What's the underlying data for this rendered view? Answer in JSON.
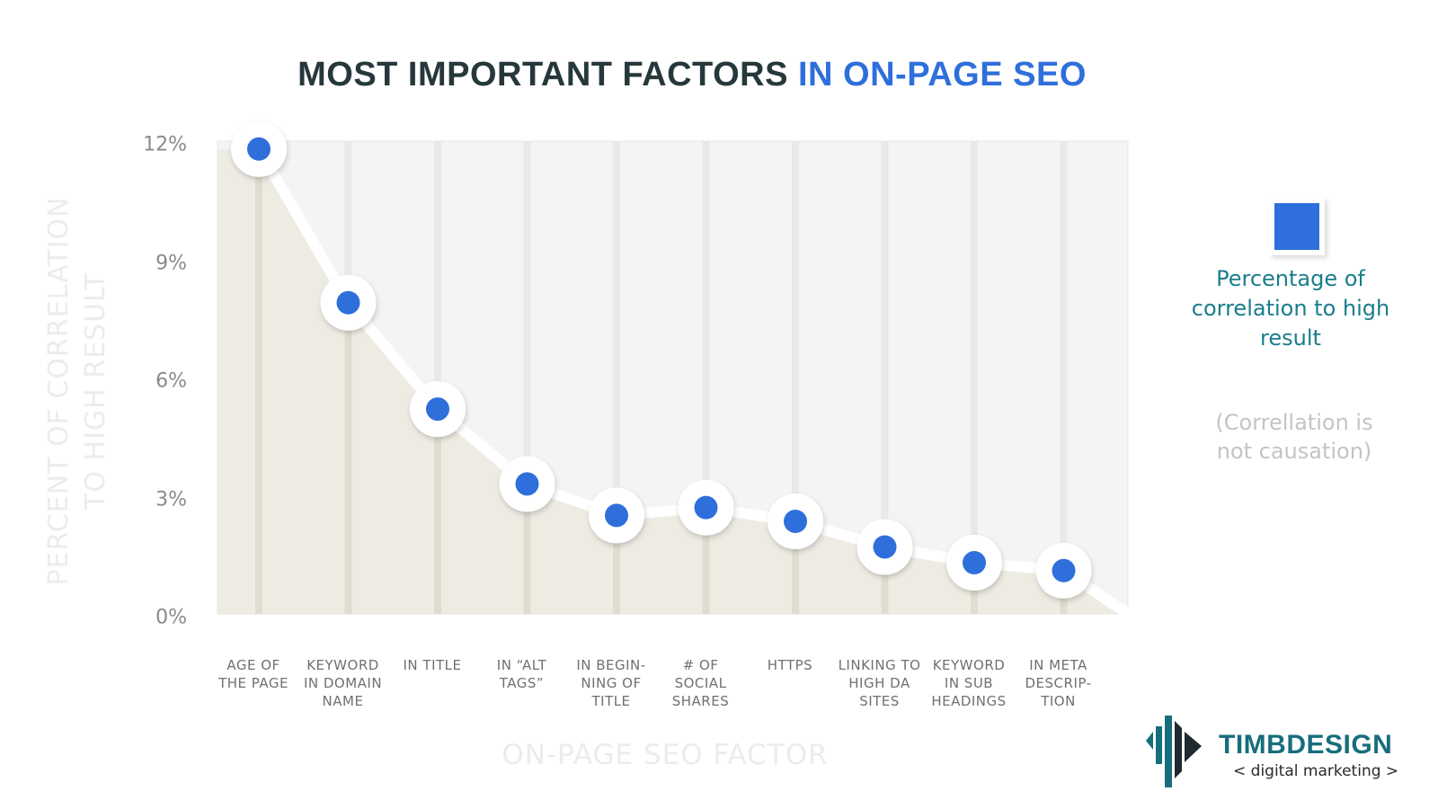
{
  "title": {
    "part1": "MOST IMPORTANT FACTORS",
    "part2": "IN ON-PAGE SEO"
  },
  "colors": {
    "accent": "#2e6fdb",
    "title_dark": "#26383b",
    "area_fill": "#ece9df",
    "plot_bg": "#f4f4f6",
    "legend_text": "#1a7d8c",
    "brand": "#166e7c"
  },
  "legend": {
    "label": "Percentage of\ncorrelation to high\nresult",
    "note": "(Correllation is\nnot causation)"
  },
  "brand": {
    "name": "TIMBDESIGN",
    "tagline": "< digital marketing >",
    "icon": "timbdesign-logo-icon"
  },
  "chart_data": {
    "type": "line",
    "title": "MOST IMPORTANT FACTORS IN ON-PAGE SEO",
    "xlabel": "ON-PAGE SEO FACTOR",
    "ylabel": "PERCENT OF CORRELATION\nTO HIGH RESULT",
    "ylim": [
      0,
      12
    ],
    "yticks": [
      "0%",
      "3%",
      "6%",
      "9%",
      "12%"
    ],
    "ytick_values": [
      0,
      3,
      6,
      9,
      12
    ],
    "grid": true,
    "legend_position": "right",
    "categories": [
      "AGE OF\nTHE PAGE",
      "KEYWORD\nIN DOMAIN\nNAME",
      "IN TITLE",
      "IN “ALT\nTAGS”",
      "IN BEGIN-\nNING OF\nTITLE",
      "# OF\nSOCIAL\nSHARES",
      "HTTPS",
      "LINKING TO\nHIGH DA\nSITES",
      "KEYWORD\nIN SUB\nHEADINGS",
      "IN META\nDESCRIP-\nTION"
    ],
    "series": [
      {
        "name": "Percentage of correlation to high result",
        "values": [
          11.8,
          7.9,
          5.2,
          3.3,
          2.5,
          2.7,
          2.35,
          1.7,
          1.3,
          1.1
        ]
      }
    ]
  }
}
